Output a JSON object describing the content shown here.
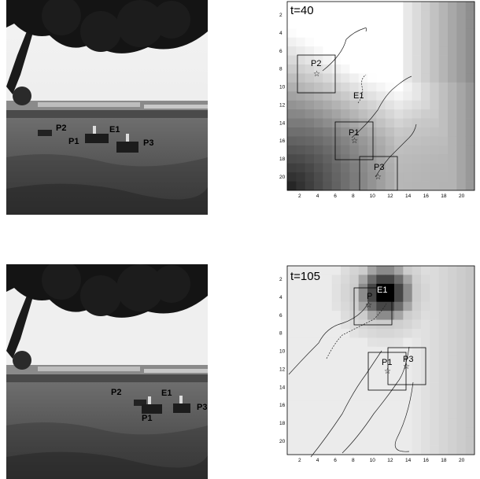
{
  "photos": [
    {
      "labels": {
        "p1": "P1",
        "p2": "P2",
        "p3": "P3",
        "e1": "E1"
      }
    },
    {
      "labels": {
        "p1": "P1",
        "p2": "P2",
        "p3": "P3",
        "e1": "E1"
      }
    }
  ],
  "heatmaps": [
    {
      "time_label": "t=40",
      "robot_labels": {
        "p1": "P1",
        "p2": "P2",
        "p3": "P3",
        "e1": "E1"
      },
      "x_ticks": [
        "2",
        "4",
        "6",
        "8",
        "10",
        "12",
        "14",
        "16",
        "18",
        "20"
      ],
      "y_ticks": [
        "2",
        "4",
        "6",
        "8",
        "10",
        "12",
        "14",
        "16",
        "18",
        "20"
      ],
      "colormap": "grayscale",
      "hot_region": "bottom-left (black) fading to white center-right",
      "robots": {
        "P1": [
          8.5,
          15.5
        ],
        "P2": [
          3.8,
          8.5
        ],
        "P3": [
          10.5,
          19
        ],
        "E1": [
          9,
          12
        ]
      }
    },
    {
      "time_label": "t=105",
      "robot_labels": {
        "p1": "P1",
        "p2": "P",
        "p3": "P3",
        "e1": "E1"
      },
      "x_ticks": [
        "2",
        "4",
        "6",
        "8",
        "10",
        "12",
        "14",
        "16",
        "18",
        "20"
      ],
      "y_ticks": [
        "2",
        "4",
        "6",
        "8",
        "10",
        "12",
        "14",
        "16",
        "18",
        "20"
      ],
      "colormap": "grayscale",
      "hot_region": "black blob near top center",
      "robots": {
        "P1": [
          11,
          12
        ],
        "P2": [
          10,
          5
        ],
        "P3": [
          13,
          11.5
        ],
        "E1": [
          11,
          4
        ]
      }
    }
  ]
}
